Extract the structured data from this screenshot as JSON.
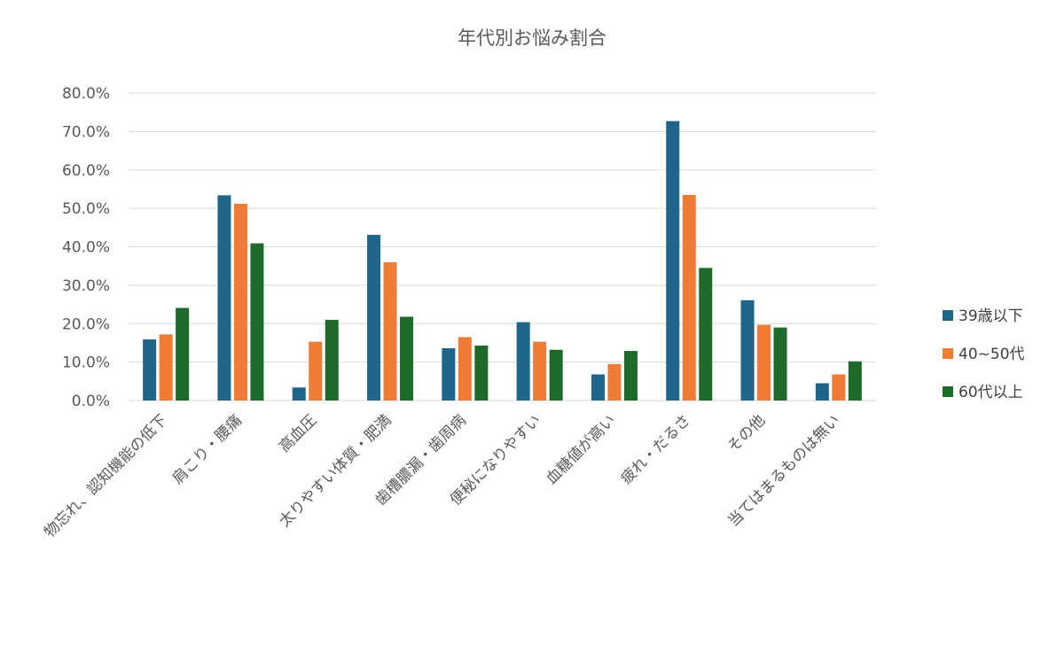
{
  "chart_data": {
    "type": "bar",
    "title": "年代別お悩み割合",
    "xlabel": "",
    "ylabel": "",
    "ylim": [
      0,
      80
    ],
    "yticks": [
      "0.0%",
      "10.0%",
      "20.0%",
      "30.0%",
      "40.0%",
      "50.0%",
      "60.0%",
      "70.0%",
      "80.0%"
    ],
    "grid": true,
    "legend_position": "right",
    "categories": [
      "物忘れ、認知機能の低下",
      "肩こり・腰痛",
      "高血圧",
      "太りやすい体質・肥満",
      "歯槽膿漏・歯周病",
      "便秘になりやすい",
      "血糖値が高い",
      "疲れ・だるさ",
      "その他",
      "当てはまるものは無い"
    ],
    "series": [
      {
        "name": "39歳以下",
        "color": "#1f6587",
        "values": [
          15.9,
          53.4,
          3.4,
          43.1,
          13.6,
          20.4,
          6.8,
          72.7,
          26.1,
          4.5
        ]
      },
      {
        "name": "40~50代",
        "color": "#ee7c35",
        "values": [
          17.2,
          51.2,
          15.3,
          36.0,
          16.5,
          15.3,
          9.5,
          53.5,
          19.7,
          6.8
        ]
      },
      {
        "name": "60代以上",
        "color": "#1e6a2a",
        "values": [
          24.1,
          40.9,
          21.0,
          21.8,
          14.3,
          13.2,
          12.9,
          34.5,
          19.0,
          10.2
        ]
      }
    ]
  }
}
